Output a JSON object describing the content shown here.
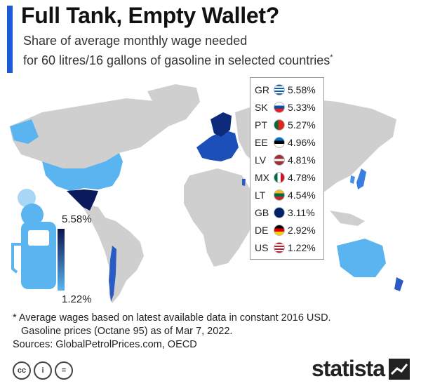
{
  "header": {
    "title": "Full Tank, Empty Wallet?",
    "subtitle_line1": "Share of average monthly wage needed",
    "subtitle_line2": "for 60 litres/16 gallons of gasoline in selected countries",
    "subtitle_mark": "*"
  },
  "colors": {
    "accent": "#1b5bd6",
    "land_no_data": "#cfcfcf",
    "scale_high": "#0a1450",
    "scale_low": "#5ab4f0"
  },
  "chart_data": {
    "type": "table",
    "categories": [
      "GR",
      "SK",
      "PT",
      "EE",
      "LV",
      "MX",
      "LT",
      "GB",
      "DE",
      "US"
    ],
    "values": [
      5.58,
      5.33,
      5.27,
      4.96,
      4.81,
      4.78,
      4.54,
      3.11,
      2.92,
      1.22
    ],
    "value_labels": [
      "5.58%",
      "5.33%",
      "5.27%",
      "4.96%",
      "4.81%",
      "4.78%",
      "4.54%",
      "3.11%",
      "2.92%",
      "1.22%"
    ],
    "scale": {
      "max_label": "5.58%",
      "min_label": "1.22%"
    }
  },
  "legend_flags": [
    "flag-greece-icon",
    "flag-slovakia-icon",
    "flag-portugal-icon",
    "flag-estonia-icon",
    "flag-latvia-icon",
    "flag-mexico-icon",
    "flag-lithuania-icon",
    "flag-uk-icon",
    "flag-germany-icon",
    "flag-usa-icon"
  ],
  "footnote": {
    "line1": "* Average wages based on latest available data in constant 2016 USD.",
    "line2": "Gasoline prices (Octane 95) as of Mar 7, 2022.",
    "line3": "Sources: GlobalPetrolPrices.com, OECD"
  },
  "branding": {
    "logo": "statista",
    "license_icons": [
      "cc-icon",
      "by-icon",
      "nd-icon"
    ]
  }
}
